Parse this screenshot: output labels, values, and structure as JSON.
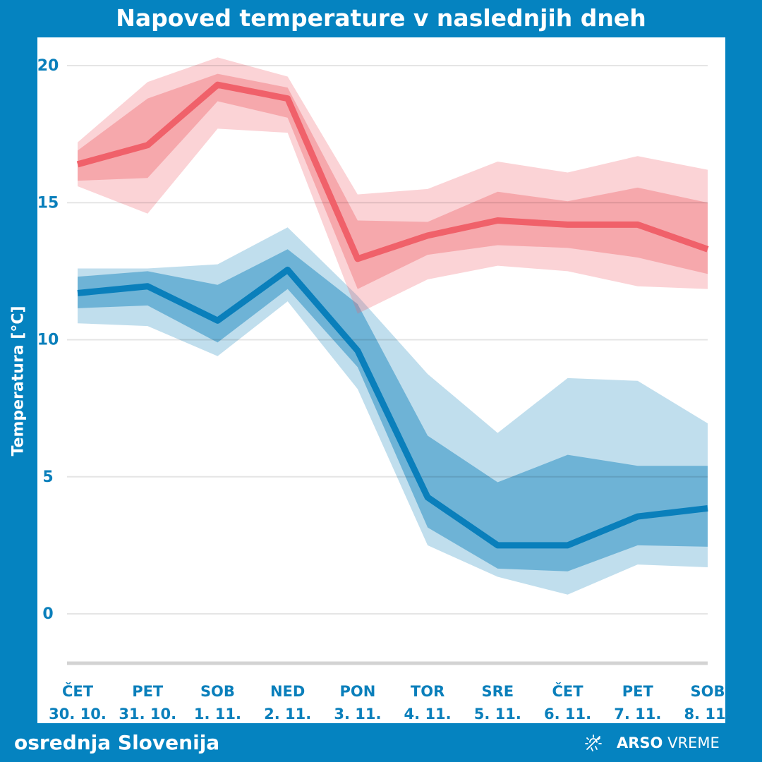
{
  "title": "Napoved temperature v naslednjih dneh",
  "region": "osrednja Slovenija",
  "logo": {
    "brand": "ARSO",
    "product": "VREME",
    "icon": "sun-weather-icon"
  },
  "colors": {
    "background": "#0583c0",
    "max_line": "#f0616a",
    "min_line": "#0a7fbb",
    "axis_text": "#0a7fbb"
  },
  "chart_data": {
    "type": "line",
    "title": "Napoved temperature v naslednjih dneh",
    "ylabel": "Temperatura [°C]",
    "xlabel": "",
    "ylim": [
      -1.8,
      20.5
    ],
    "yticks": [
      0,
      5,
      10,
      15,
      20
    ],
    "grid": true,
    "categories": [
      {
        "day": "ČET",
        "date": "30. 10."
      },
      {
        "day": "PET",
        "date": "31. 10."
      },
      {
        "day": "SOB",
        "date": "1. 11."
      },
      {
        "day": "NED",
        "date": "2. 11."
      },
      {
        "day": "PON",
        "date": "3. 11."
      },
      {
        "day": "TOR",
        "date": "4. 11."
      },
      {
        "day": "SRE",
        "date": "5. 11."
      },
      {
        "day": "ČET",
        "date": "6. 11."
      },
      {
        "day": "PET",
        "date": "7. 11."
      },
      {
        "day": "SOB",
        "date": "8. 11."
      }
    ],
    "series": [
      {
        "key": "max",
        "color": "#f0616a",
        "median": [
          16.4,
          17.1,
          19.3,
          18.8,
          12.95,
          13.8,
          14.35,
          14.2,
          14.2,
          13.3
        ],
        "inner_upper": [
          16.9,
          18.8,
          19.7,
          19.2,
          14.35,
          14.3,
          15.4,
          15.05,
          15.55,
          15.0
        ],
        "inner_lower": [
          15.8,
          15.9,
          18.7,
          18.1,
          11.85,
          13.1,
          13.45,
          13.35,
          13.0,
          12.4
        ],
        "outer_upper": [
          17.2,
          19.4,
          20.3,
          19.6,
          15.3,
          15.5,
          16.5,
          16.1,
          16.7,
          16.2
        ],
        "outer_lower": [
          15.6,
          14.6,
          17.7,
          17.55,
          10.95,
          12.2,
          12.7,
          12.5,
          11.95,
          11.85
        ]
      },
      {
        "key": "min",
        "color": "#0a7fbb",
        "median": [
          11.7,
          11.95,
          10.7,
          12.55,
          9.6,
          4.25,
          2.5,
          2.5,
          3.55,
          3.85
        ],
        "inner_upper": [
          12.3,
          12.5,
          12.0,
          13.3,
          11.3,
          6.5,
          4.8,
          5.8,
          5.4,
          5.4
        ],
        "inner_lower": [
          11.15,
          11.25,
          9.9,
          11.85,
          9.0,
          3.15,
          1.65,
          1.55,
          2.5,
          2.45
        ],
        "outer_upper": [
          12.6,
          12.6,
          12.75,
          14.1,
          11.6,
          8.75,
          6.6,
          8.6,
          8.5,
          6.95
        ],
        "outer_lower": [
          10.6,
          10.5,
          9.4,
          11.4,
          8.2,
          2.5,
          1.35,
          0.7,
          1.8,
          1.7
        ]
      }
    ]
  }
}
